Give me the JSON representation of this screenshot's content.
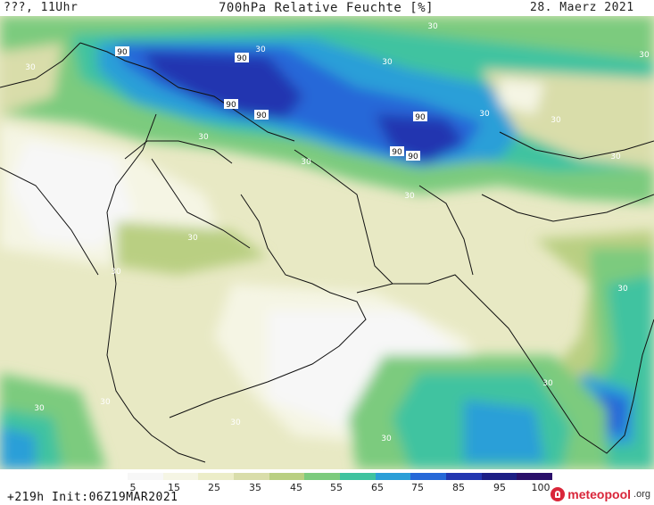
{
  "header": {
    "left": "???, 11Uhr",
    "title": "700hPa Relative Feuchte [%]",
    "date": "28. Maerz 2021"
  },
  "footer": {
    "forecast": "+219h  Init:06Z19MAR2021",
    "brand_name": "meteopool",
    "brand_domain": ".org"
  },
  "legend": {
    "ticks": [
      "5",
      "15",
      "25",
      "35",
      "45",
      "55",
      "65",
      "75",
      "85",
      "95",
      "100"
    ],
    "colors": [
      "#f7f7f7",
      "#f5f5e4",
      "#ecedc8",
      "#d9ddaa",
      "#b9cf82",
      "#7ccb7e",
      "#3fc3a0",
      "#2b9fd8",
      "#2668d8",
      "#2236b0",
      "#1c1e85",
      "#2a0f6a"
    ]
  },
  "map": {
    "contour_labels": [
      "30",
      "90"
    ]
  },
  "colors": {
    "brand": "#d9263a"
  }
}
